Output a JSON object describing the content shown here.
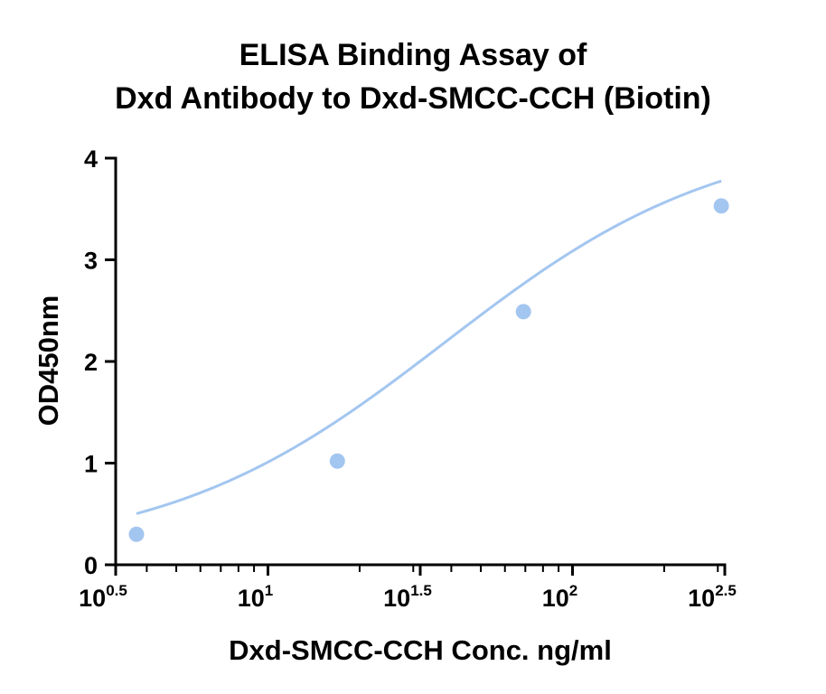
{
  "chart_data": {
    "type": "scatter",
    "title": [
      "ELISA Binding Assay of",
      "Dxd Antibody to Dxd-SMCC-CCH (Biotin)"
    ],
    "xlabel": "Dxd-SMCC-CCH Conc. ng/ml",
    "ylabel": "OD450nm",
    "x_scale": "log10",
    "xlim_exponent": [
      0.5,
      2.5
    ],
    "ylim": [
      0,
      4
    ],
    "x_ticks": [
      {
        "base": "10",
        "exp": "0.5"
      },
      {
        "base": "10",
        "exp": "1"
      },
      {
        "base": "10",
        "exp": "1.5"
      },
      {
        "base": "10",
        "exp": "2"
      },
      {
        "base": "10",
        "exp": "2.5"
      }
    ],
    "y_ticks": [
      "0",
      "1",
      "2",
      "3",
      "4"
    ],
    "series": [
      {
        "x": [
          3.7,
          16.9,
          69.0,
          308.0
        ],
        "y": [
          0.3,
          1.02,
          2.49,
          3.53
        ],
        "color": "#a3c6f0",
        "fit": "4PL"
      }
    ],
    "grid": false,
    "legend": "none"
  }
}
